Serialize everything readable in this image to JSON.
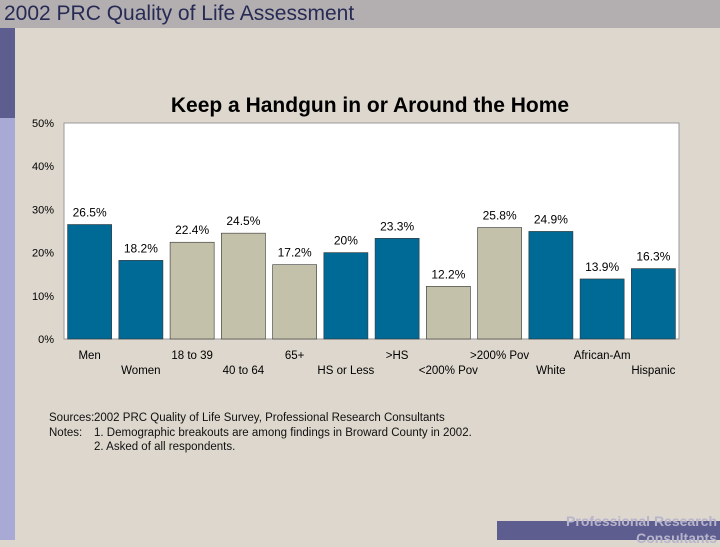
{
  "slide": {
    "header_title": "2002 PRC Quality of Life Assessment",
    "footer_text": "Professional Research Consultants"
  },
  "colors": {
    "blue_bar": "#006a96",
    "tan_bar": "#c3c1aa",
    "plot_bg": "#ffffff"
  },
  "chart_data": {
    "type": "bar",
    "title": "Keep a Handgun in or Around the Home",
    "categories": [
      "Men",
      "Women",
      "18 to 39",
      "40 to 64",
      "65+",
      "HS or Less",
      ">HS",
      "<200% Pov",
      ">200% Pov",
      "White",
      "African-Am",
      "Hispanic"
    ],
    "values": [
      26.5,
      18.2,
      22.4,
      24.5,
      17.2,
      20,
      23.3,
      12.2,
      25.8,
      24.9,
      13.9,
      16.3
    ],
    "value_labels": [
      "26.5%",
      "18.2%",
      "22.4%",
      "24.5%",
      "17.2%",
      "20%",
      "23.3%",
      "12.2%",
      "25.8%",
      "24.9%",
      "13.9%",
      "16.3%"
    ],
    "bar_colors": [
      "blue",
      "blue",
      "tan",
      "tan",
      "tan",
      "blue",
      "blue",
      "tan",
      "tan",
      "blue",
      "blue",
      "blue"
    ],
    "yticks": [
      "0%",
      "10%",
      "20%",
      "30%",
      "40%",
      "50%"
    ],
    "ylim": [
      0,
      50
    ],
    "grid": false,
    "legend": "none"
  },
  "notes": {
    "sources_label": "Sources:",
    "sources_text": "2002 PRC Quality of Life Survey, Professional Research Consultants",
    "notes_label": "Notes:",
    "note1": "1. Demographic breakouts are among findings in Broward County in 2002.",
    "note2": "2. Asked of all respondents."
  }
}
